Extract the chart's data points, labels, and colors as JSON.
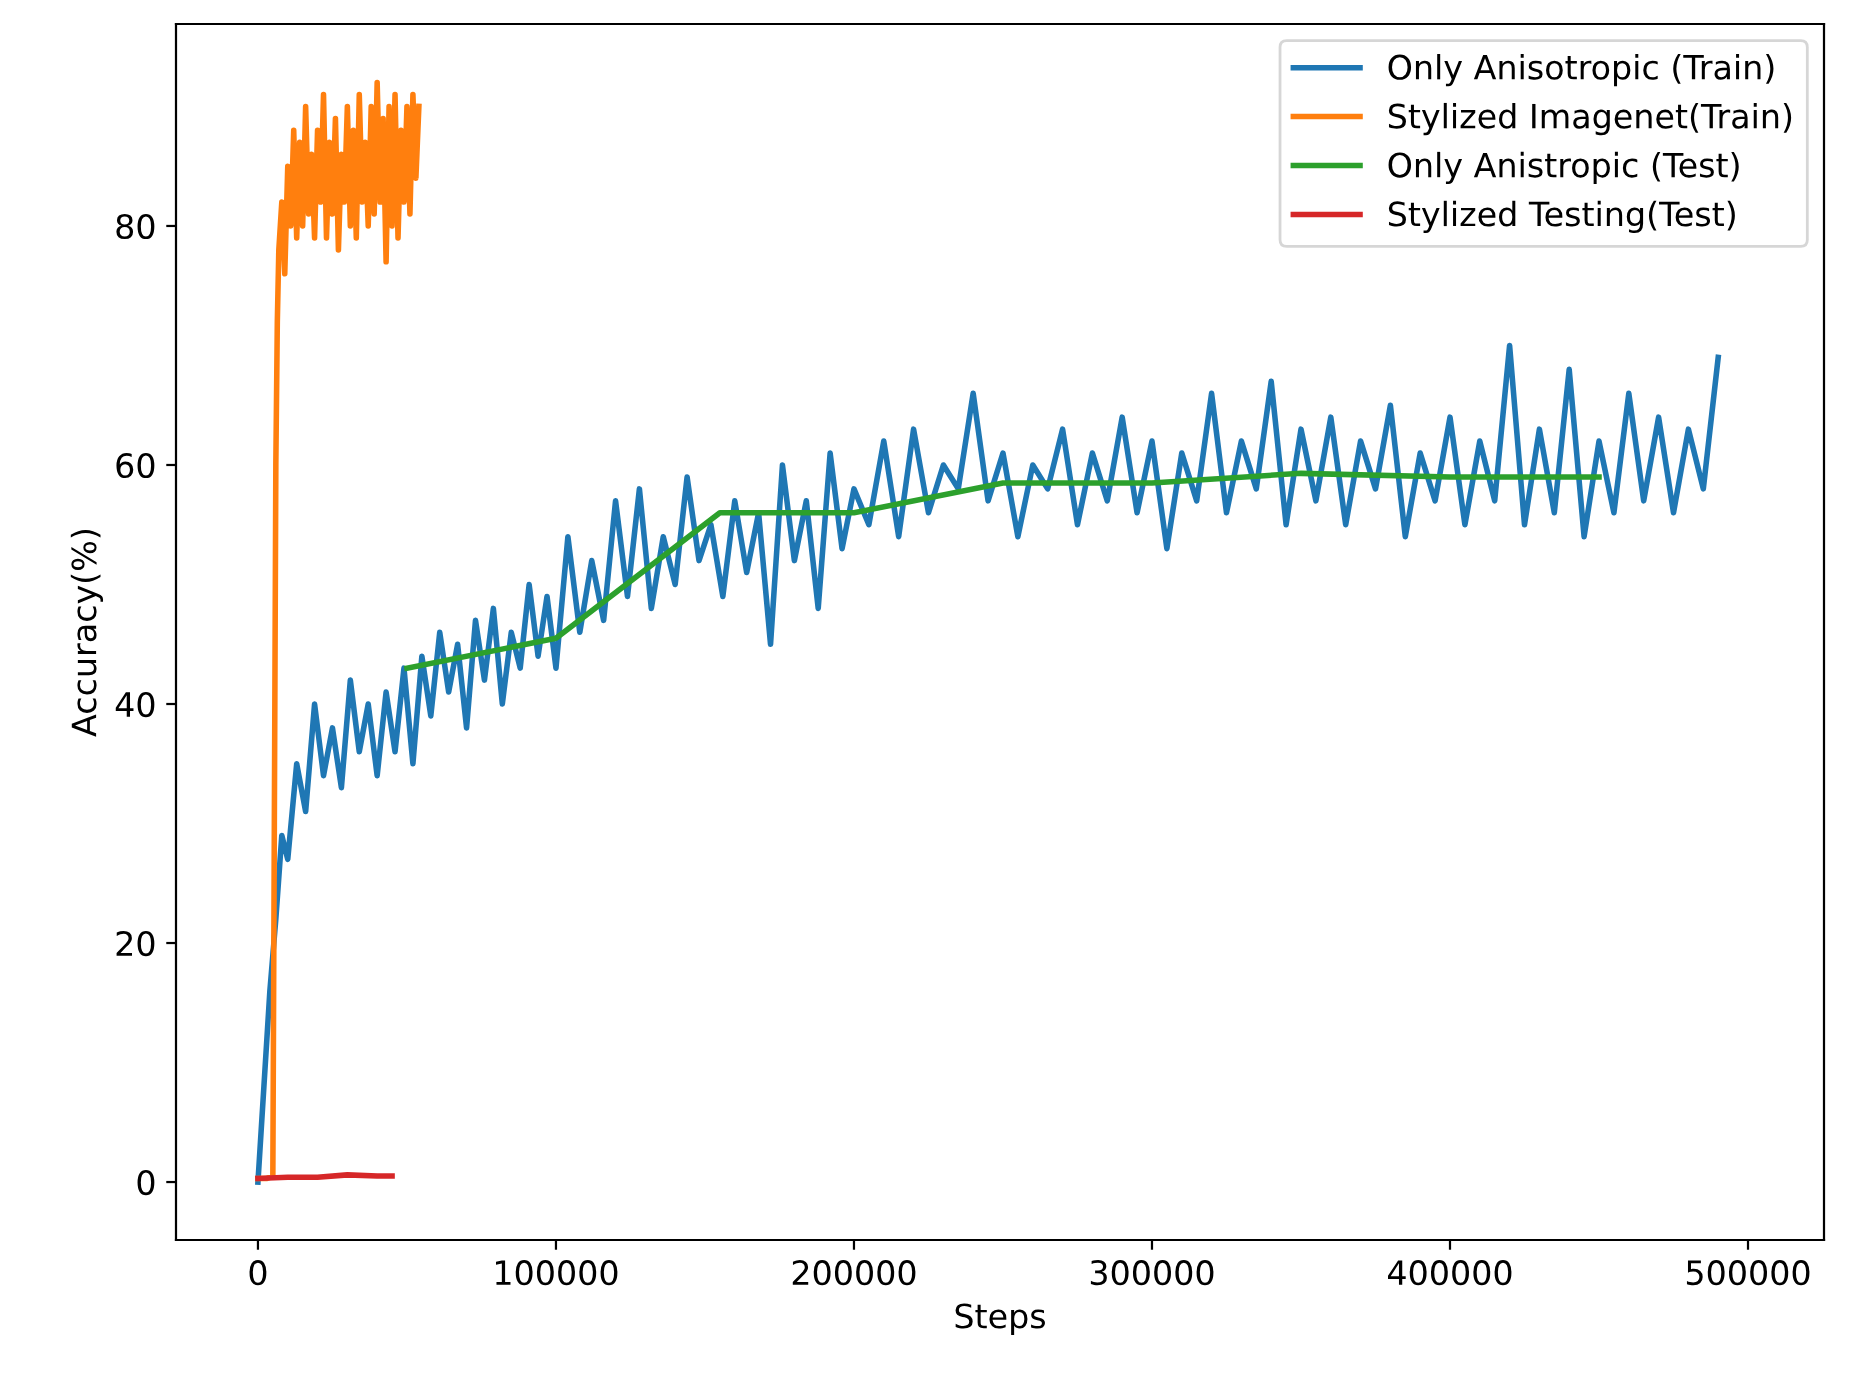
{
  "chart_data": {
    "type": "line",
    "xlabel": "Steps",
    "ylabel": "Accuracy(%)",
    "xlim": [
      -27500,
      525500
    ],
    "ylim": [
      -4.85,
      96.9
    ],
    "xticks": [
      0,
      100000,
      200000,
      300000,
      400000,
      500000
    ],
    "yticks": [
      0,
      20,
      40,
      60,
      80
    ],
    "grid": false,
    "legend": "top right",
    "marker": "none",
    "line_style": "solid",
    "series": [
      {
        "name": "Only Anisotropic (Train)",
        "color": "#1f77b4",
        "x": [
          0,
          2000,
          4000,
          6000,
          8000,
          10000,
          13000,
          16000,
          19000,
          22000,
          25000,
          28000,
          31000,
          34000,
          37000,
          40000,
          43000,
          46000,
          49000,
          52000,
          55000,
          58000,
          61000,
          64000,
          67000,
          70000,
          73000,
          76000,
          79000,
          82000,
          85000,
          88000,
          91000,
          94000,
          97000,
          100000,
          104000,
          108000,
          112000,
          116000,
          120000,
          124000,
          128000,
          132000,
          136000,
          140000,
          144000,
          148000,
          152000,
          156000,
          160000,
          164000,
          168000,
          172000,
          176000,
          180000,
          184000,
          188000,
          192000,
          196000,
          200000,
          205000,
          210000,
          215000,
          220000,
          225000,
          230000,
          235000,
          240000,
          245000,
          250000,
          255000,
          260000,
          265000,
          270000,
          275000,
          280000,
          285000,
          290000,
          295000,
          300000,
          305000,
          310000,
          315000,
          320000,
          325000,
          330000,
          335000,
          340000,
          345000,
          350000,
          355000,
          360000,
          365000,
          370000,
          375000,
          380000,
          385000,
          390000,
          395000,
          400000,
          405000,
          410000,
          415000,
          420000,
          425000,
          430000,
          435000,
          440000,
          445000,
          450000,
          455000,
          460000,
          465000,
          470000,
          475000,
          480000,
          485000,
          490000
        ],
        "values": [
          0,
          8,
          16,
          22,
          29,
          27,
          35,
          31,
          40,
          34,
          38,
          33,
          42,
          36,
          40,
          34,
          41,
          36,
          43,
          35,
          44,
          39,
          46,
          41,
          45,
          38,
          47,
          42,
          48,
          40,
          46,
          43,
          50,
          44,
          49,
          43,
          54,
          46,
          52,
          47,
          57,
          49,
          58,
          48,
          54,
          50,
          59,
          52,
          55,
          49,
          57,
          51,
          56,
          45,
          60,
          52,
          57,
          48,
          61,
          53,
          58,
          55,
          62,
          54,
          63,
          56,
          60,
          58,
          66,
          57,
          61,
          54,
          60,
          58,
          63,
          55,
          61,
          57,
          64,
          56,
          62,
          53,
          61,
          57,
          66,
          56,
          62,
          58,
          67,
          55,
          63,
          57,
          64,
          55,
          62,
          58,
          65,
          54,
          61,
          57,
          64,
          55,
          62,
          57,
          70,
          55,
          63,
          56,
          68,
          54,
          62,
          56,
          66,
          57,
          64,
          56,
          63,
          58,
          69
        ]
      },
      {
        "name": "Stylized Imagenet(Train)",
        "color": "#ff7f0e",
        "x": [
          0,
          3000,
          5000,
          5500,
          6000,
          6500,
          7000,
          8000,
          9000,
          10000,
          11000,
          12000,
          13000,
          14000,
          15000,
          16000,
          17000,
          18000,
          19000,
          20000,
          21000,
          22000,
          23000,
          24000,
          25000,
          26000,
          27000,
          28000,
          29000,
          30000,
          31000,
          32000,
          33000,
          34000,
          35000,
          36000,
          37000,
          38000,
          39000,
          40000,
          41000,
          42000,
          43000,
          44000,
          45000,
          46000,
          47000,
          48000,
          49000,
          50000,
          51000,
          52000,
          53000,
          54000
        ],
        "values": [
          0.3,
          0.3,
          0.5,
          30,
          60,
          72,
          78,
          82,
          76,
          85,
          80,
          88,
          79,
          87,
          80,
          90,
          81,
          86,
          79,
          88,
          82,
          91,
          79,
          87,
          81,
          89,
          78,
          86,
          82,
          90,
          80,
          88,
          79,
          91,
          82,
          87,
          80,
          90,
          81,
          92,
          82,
          89,
          77,
          90,
          80,
          91,
          79,
          88,
          82,
          90,
          81,
          91,
          84,
          90
        ]
      },
      {
        "name": "Only Anistropic (Test)",
        "color": "#2ca02c",
        "x": [
          50000,
          100000,
          155000,
          200000,
          250000,
          300000,
          350000,
          400000,
          450000
        ],
        "values": [
          43,
          45.5,
          56,
          56,
          58.5,
          58.5,
          59.3,
          59,
          59
        ]
      },
      {
        "name": "Stylized Testing(Test)",
        "color": "#d62728",
        "x": [
          0,
          10000,
          20000,
          30000,
          40000,
          45000
        ],
        "values": [
          0.3,
          0.4,
          0.4,
          0.6,
          0.5,
          0.5
        ]
      }
    ]
  }
}
